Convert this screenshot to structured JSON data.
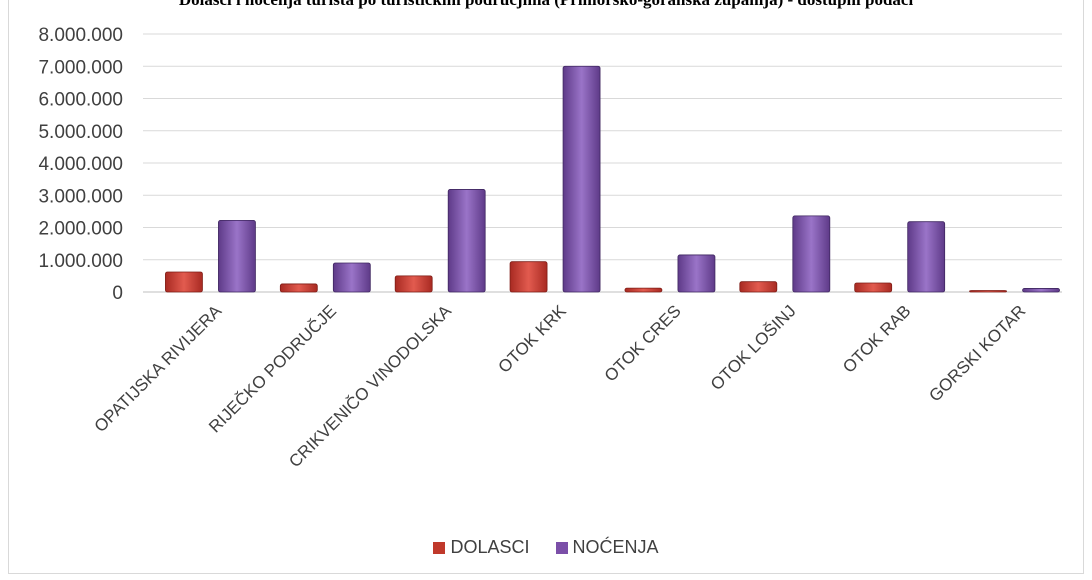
{
  "chart_data": {
    "type": "bar",
    "title": "Dolasci i noćenja turista po turističkim područjima (Primorsko-goranska županija) - dostupni podaci",
    "categories": [
      "OPATIJSKA RIVIJERA",
      "RIJEČKO PODRUČJE",
      "CRIKVENIČO VINODOLSKA",
      "OTOK KRK",
      "OTOK CRES",
      "OTOK LOŠINJ",
      "OTOK RAB",
      "GORSKI KOTAR"
    ],
    "series": [
      {
        "name": "DOLASCI",
        "color": "#c0392b",
        "values": [
          620000,
          250000,
          500000,
          940000,
          120000,
          320000,
          280000,
          40000
        ]
      },
      {
        "name": "NOĆENJA",
        "color": "#7b4fa8",
        "values": [
          2220000,
          900000,
          3180000,
          7000000,
          1150000,
          2360000,
          2180000,
          110000
        ]
      }
    ],
    "ylim": [
      0,
      8000000
    ],
    "yticks": [
      0,
      1000000,
      2000000,
      3000000,
      4000000,
      5000000,
      6000000,
      7000000,
      8000000
    ],
    "ytick_labels": [
      "0",
      "1.000.000",
      "2.000.000",
      "3.000.000",
      "4.000.000",
      "5.000.000",
      "6.000.000",
      "7.000.000",
      "8.000.000"
    ],
    "grid": true,
    "legend_position": "bottom"
  }
}
